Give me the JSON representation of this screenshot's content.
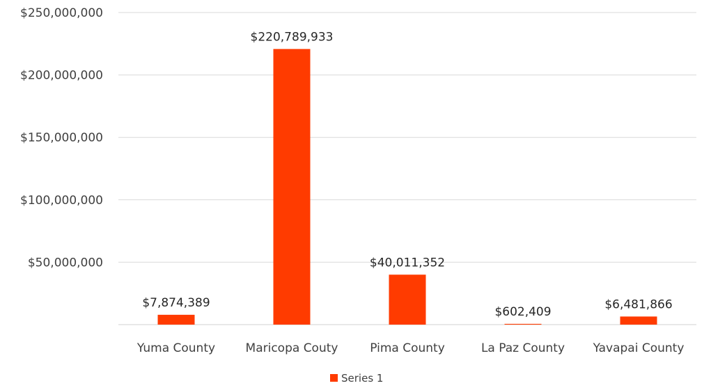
{
  "chart_data": {
    "type": "bar",
    "categories": [
      "Yuma County",
      "Maricopa Couty",
      "Pima County",
      "La Paz County",
      "Yavapai County"
    ],
    "series": [
      {
        "name": "Series 1",
        "values": [
          7874389,
          220789933,
          40011352,
          602409,
          6481866
        ],
        "color": "#ff3b00"
      }
    ],
    "data_labels": [
      "$7,874,389",
      "$220,789,933",
      "$40,011,352",
      "$602,409",
      "$6,481,866"
    ],
    "y_ticks": [
      0,
      50000000,
      100000000,
      150000000,
      200000000,
      250000000
    ],
    "y_tick_labels": [
      "",
      "$50,000,000",
      "$100,000,000",
      "$150,000,000",
      "$200,000,000",
      "$250,000,000"
    ],
    "ylim": [
      0,
      250000000
    ],
    "grid": true,
    "gridline_color": "#d9d9d9",
    "legend_position": "bottom",
    "title": "",
    "xlabel": "",
    "ylabel": ""
  }
}
